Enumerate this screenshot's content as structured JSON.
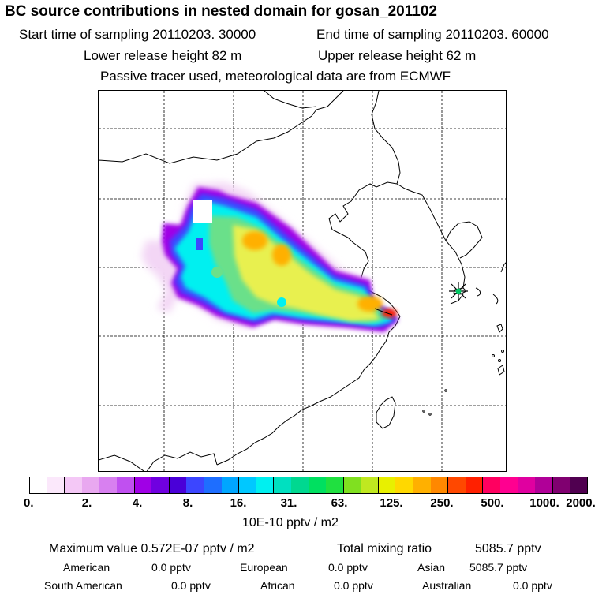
{
  "header": {
    "title": "BC  source contributions in nested domain for gosan_201102",
    "start_label": "Start time of sampling 20110203. 30000",
    "end_label": "End time of sampling 20110203. 60000",
    "lower_label": "Lower release height   82 m",
    "upper_label": "Upper release height   62 m",
    "note": "Passive tracer used, meteorological data are from ECMWF"
  },
  "map": {
    "receptor_marker": "star-marker",
    "plume_colors": {
      "outer": "#f3d6f5",
      "purple": "#a000e6",
      "blue": "#3c46ff",
      "cyan": "#00f0f0",
      "green": "#6be08a",
      "yellow": "#e8f050",
      "orange": "#ffb000",
      "red": "#ff2000"
    }
  },
  "colorbar": {
    "colors": [
      "#ffffff",
      "#fbe8fb",
      "#f4c8f6",
      "#e9a8f0",
      "#d880f0",
      "#c050f0",
      "#a000e6",
      "#7000e0",
      "#4a00d8",
      "#3c46ff",
      "#1e6eff",
      "#00a6ff",
      "#00c8ff",
      "#00f0f0",
      "#00e0c0",
      "#00d890",
      "#00e060",
      "#20e040",
      "#80e020",
      "#c0e820",
      "#e8f000",
      "#ffd800",
      "#ffb000",
      "#ff8800",
      "#ff4800",
      "#ff2000",
      "#ff0060",
      "#ff0090",
      "#e000a0",
      "#b00098",
      "#800070",
      "#500050"
    ],
    "ticks": [
      "0.",
      "2.",
      "4.",
      "8.",
      "16.",
      "31.",
      "63.",
      "125.",
      "250.",
      "500.",
      "1000.",
      "2000."
    ],
    "unit": "10E-10 pptv / m2"
  },
  "summary": {
    "max_label": "Maximum value  0.572E-07 pptv / m2",
    "total_label": "Total mixing ratio",
    "total_value": "5085.7 pptv",
    "rows": [
      [
        {
          "label": "American",
          "value": "0.0 pptv"
        },
        {
          "label": "European",
          "value": "0.0 pptv"
        },
        {
          "label": "Asian",
          "value": "5085.7 pptv"
        }
      ],
      [
        {
          "label": "South American",
          "value": "0.0 pptv"
        },
        {
          "label": "African",
          "value": "0.0 pptv"
        },
        {
          "label": "Australian",
          "value": "0.0 pptv"
        }
      ]
    ]
  }
}
